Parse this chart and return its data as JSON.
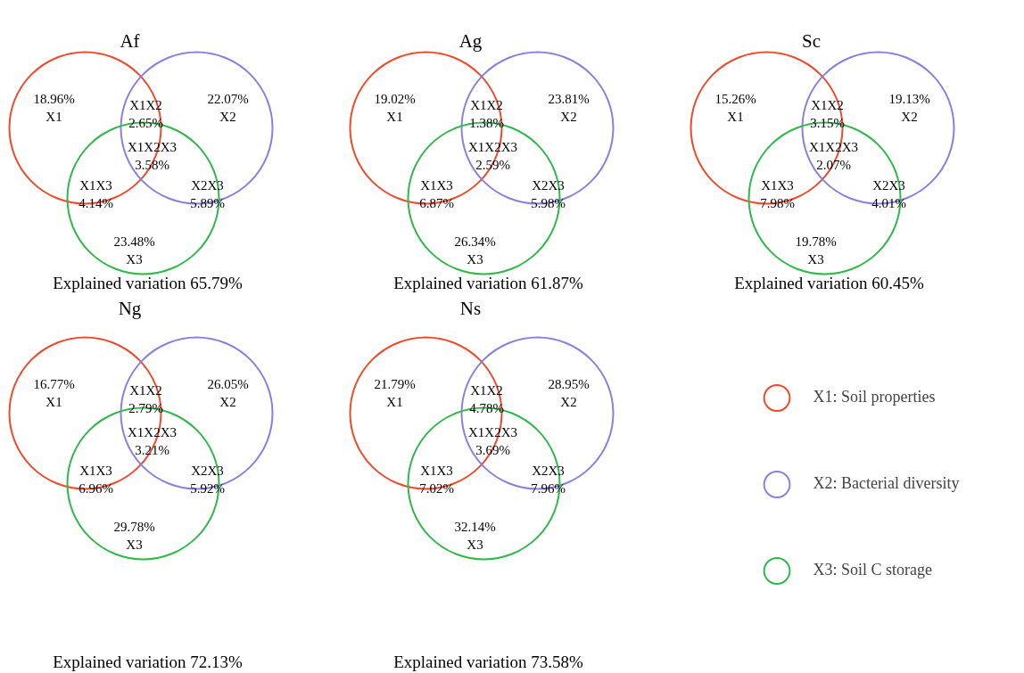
{
  "chart_data": [
    {
      "type": "other",
      "title": "Af",
      "categories": [
        "X1",
        "X2",
        "X3",
        "X1X2",
        "X1X3",
        "X2X3",
        "X1X2X3"
      ],
      "values": [
        18.96,
        22.07,
        23.48,
        2.65,
        4.14,
        5.89,
        3.58
      ],
      "value_labels": [
        "18.96%",
        "22.07%",
        "23.48%",
        "2.65%",
        "4.14%",
        "5.89%",
        "3.58%"
      ],
      "annotations": [
        "Explained variation 65.79%"
      ]
    },
    {
      "type": "other",
      "title": "Ag",
      "categories": [
        "X1",
        "X2",
        "X3",
        "X1X2",
        "X1X3",
        "X2X3",
        "X1X2X3"
      ],
      "values": [
        19.02,
        23.81,
        26.34,
        1.38,
        6.87,
        5.98,
        2.59
      ],
      "value_labels": [
        "19.02%",
        "23.81%",
        "26.34%",
        "1.38%",
        "6.87%",
        "5.98%",
        "2.59%"
      ],
      "annotations": [
        "Explained variation 61.87%"
      ]
    },
    {
      "type": "other",
      "title": "Sc",
      "categories": [
        "X1",
        "X2",
        "X3",
        "X1X2",
        "X1X3",
        "X2X3",
        "X1X2X3"
      ],
      "values": [
        15.26,
        19.13,
        19.78,
        3.15,
        7.98,
        4.01,
        2.07
      ],
      "value_labels": [
        "15.26%",
        "19.13%",
        "19.78%",
        "3.15%",
        "7.98%",
        "4.01%",
        "2.07%"
      ],
      "annotations": [
        "Explained variation 60.45%"
      ]
    },
    {
      "type": "other",
      "title": "Ng",
      "categories": [
        "X1",
        "X2",
        "X3",
        "X1X2",
        "X1X3",
        "X2X3",
        "X1X2X3"
      ],
      "values": [
        16.77,
        26.05,
        29.78,
        2.79,
        6.96,
        5.92,
        3.21
      ],
      "value_labels": [
        "16.77%",
        "26.05%",
        "29.78%",
        "2.79%",
        "6.96%",
        "5.92%",
        "3.21%"
      ],
      "annotations": [
        "Explained variation 72.13%"
      ]
    },
    {
      "type": "other",
      "title": "Ns",
      "categories": [
        "X1",
        "X2",
        "X3",
        "X1X2",
        "X1X3",
        "X2X3",
        "X1X2X3"
      ],
      "values": [
        21.79,
        28.95,
        32.14,
        4.78,
        7.02,
        7.96,
        3.69
      ],
      "value_labels": [
        "21.79%",
        "28.95%",
        "32.14%",
        "4.78%",
        "7.02%",
        "7.96%",
        "3.69%"
      ],
      "annotations": [
        "Explained variation 73.58%"
      ]
    },
    {
      "type": "other",
      "legend": "right",
      "series": [
        {
          "name": "X1: Soil properties",
          "color": "#f04a2c"
        },
        {
          "name": "X2: Bacterial diversity",
          "color": "#8b7fe0"
        },
        {
          "name": "X3: Soil C storage",
          "color": "#2fb84c"
        }
      ]
    }
  ]
}
